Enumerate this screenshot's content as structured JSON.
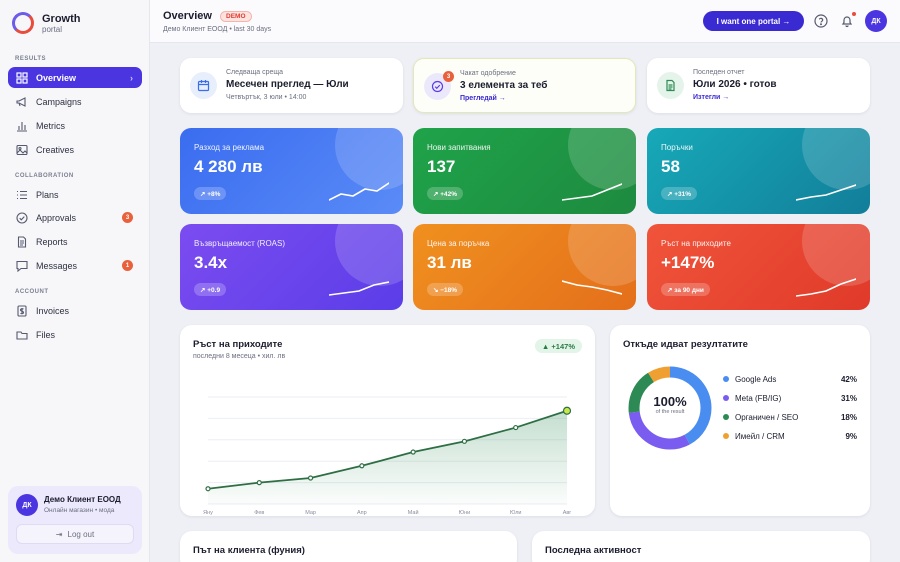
{
  "brand": {
    "title": "Growth",
    "subtitle": "portal"
  },
  "sidebar": {
    "sections": [
      {
        "label": "RESULTS",
        "items": [
          {
            "label": "Overview",
            "icon": "grid-icon",
            "active": true
          },
          {
            "label": "Campaigns",
            "icon": "megaphone-icon"
          },
          {
            "label": "Metrics",
            "icon": "bar-chart-icon"
          },
          {
            "label": "Creatives",
            "icon": "image-icon"
          }
        ]
      },
      {
        "label": "COLLABORATION",
        "items": [
          {
            "label": "Plans",
            "icon": "list-icon"
          },
          {
            "label": "Approvals",
            "icon": "check-circle-icon",
            "badge": "3"
          },
          {
            "label": "Reports",
            "icon": "document-icon"
          },
          {
            "label": "Messages",
            "icon": "chat-icon",
            "badge": "1"
          }
        ]
      },
      {
        "label": "ACCOUNT",
        "items": [
          {
            "label": "Invoices",
            "icon": "invoice-icon"
          },
          {
            "label": "Files",
            "icon": "folder-icon"
          }
        ]
      }
    ]
  },
  "user": {
    "initials": "ДК",
    "name": "Демо Клиент ЕООД",
    "subtitle": "Онлайн магазин • мода",
    "logout_label": "Log out"
  },
  "header": {
    "title": "Overview",
    "demo_badge": "DEMO",
    "subtitle": "Демо Клиент ЕООД • last 30 days",
    "cta_label": "I want one  portal →",
    "avatar_initials": "ДК"
  },
  "info_cards": [
    {
      "label": "Следваща среща",
      "value": "Месечен преглед — Юли",
      "sub": "Четвъртък, 3 юли • 14:00",
      "icon": "calendar-icon"
    },
    {
      "label": "Чакат одобрение",
      "value": "3 елемента за теб",
      "link": "Прегледай →",
      "badge": "3",
      "icon": "check-circle-icon"
    },
    {
      "label": "Последен отчет",
      "value": "Юли 2026 • готов",
      "link": "Изтегли →",
      "icon": "document-icon"
    }
  ],
  "kpis": [
    {
      "label": "Разход за реклама",
      "value": "4 280 лв",
      "chip": "↗ +8%",
      "trend": "up"
    },
    {
      "label": "Нови запитвания",
      "value": "137",
      "chip": "↗ +42%",
      "trend": "up"
    },
    {
      "label": "Поръчки",
      "value": "58",
      "chip": "↗ +31%",
      "trend": "up"
    },
    {
      "label": "Възвръщаемост (ROAS)",
      "value": "3.4x",
      "chip": "↗ +0.9",
      "trend": "up"
    },
    {
      "label": "Цена за поръчка",
      "value": "31 лв",
      "chip": "↘ −18%",
      "trend": "down"
    },
    {
      "label": "Ръст на приходите",
      "value": "+147%",
      "chip": "↗ за 90 дни",
      "trend": "up"
    }
  ],
  "colors": {
    "accent": "#3a2ad1",
    "kpi_gradients": [
      [
        "#3a6cf0",
        "#5a8bf7"
      ],
      [
        "#1fa34a",
        "#1e8a3f"
      ],
      [
        "#17a9b8",
        "#127e9a"
      ],
      [
        "#7b4cf0",
        "#5b3de8"
      ],
      [
        "#f0901f",
        "#e46f1b"
      ],
      [
        "#f0543a",
        "#e03a2a"
      ]
    ]
  },
  "revenue_panel": {
    "title": "Ръст на приходите",
    "subtitle": "последни 8 месеца • хил. лв",
    "chip": "▲ +147%"
  },
  "sources_panel": {
    "title": "Откъде идват резултатите",
    "center_value": "100%",
    "center_label": "of the result",
    "items": [
      {
        "label": "Google Ads",
        "pct": "42%",
        "color": "#4a8df0"
      },
      {
        "label": "Meta (FB/IG)",
        "pct": "31%",
        "color": "#7b5cf0"
      },
      {
        "label": "Органичен / SEO",
        "pct": "18%",
        "color": "#2e8a55"
      },
      {
        "label": "Имейл / CRM",
        "pct": "9%",
        "color": "#f0a030"
      }
    ]
  },
  "bottom_panels": {
    "funnel_title": "Път на клиента (фуния)",
    "activity_title": "Последна активност"
  },
  "chart_data": {
    "type": "area",
    "categories": [
      "Яну",
      "Фев",
      "Мар",
      "Апр",
      "Май",
      "Юни",
      "Юли",
      "Авг"
    ],
    "values": [
      1.0,
      1.4,
      1.7,
      2.5,
      3.4,
      4.1,
      5.0,
      6.1
    ],
    "ylim": [
      0,
      7
    ],
    "grid": true
  }
}
